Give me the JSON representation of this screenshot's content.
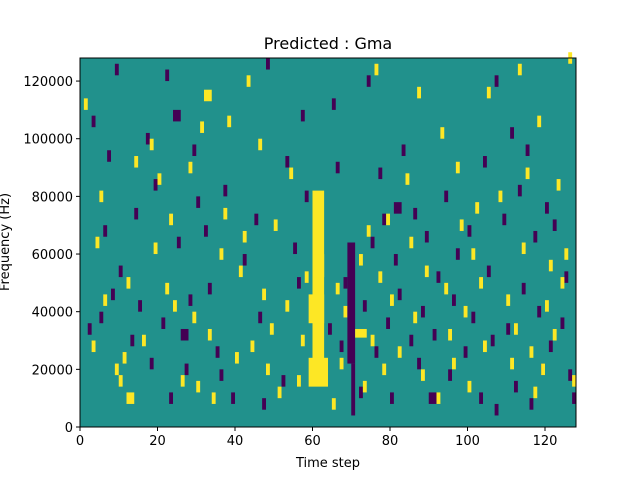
{
  "chart_data": {
    "type": "heatmap",
    "title": "Predicted : Gma",
    "xlabel": "Time step",
    "ylabel": "Frequency (Hz)",
    "xlim": [
      0,
      128
    ],
    "ylim": [
      0,
      128000
    ],
    "x_ticks": [
      0,
      20,
      40,
      60,
      80,
      100,
      120
    ],
    "y_ticks": [
      0,
      20000,
      40000,
      60000,
      80000,
      100000,
      120000
    ],
    "x_tick_labels": [
      "0",
      "20",
      "40",
      "60",
      "80",
      "100",
      "120"
    ],
    "y_tick_labels": [
      "0",
      "20000",
      "40000",
      "60000",
      "80000",
      "100000",
      "120000"
    ],
    "n_time_steps": 128,
    "n_frequency_bins": 128,
    "colormap": "viridis",
    "values": {
      "low": -1,
      "mid": 0,
      "high": 1
    },
    "colors": {
      "low": "#440154",
      "mid": "#21918c",
      "high": "#fde725"
    },
    "background_value": 0,
    "high_cells": [
      {
        "t": [
          60,
          63
        ],
        "f": [
          18000,
          82000
        ]
      },
      {
        "t": [
          59,
          64
        ],
        "f": [
          14000,
          24000
        ]
      },
      {
        "t": [
          59,
          63
        ],
        "f": [
          36000,
          46000
        ]
      },
      {
        "t": [
          60,
          63
        ],
        "f": [
          52000,
          60000
        ]
      },
      {
        "t": [
          71,
          74
        ],
        "f": [
          31000,
          34000
        ]
      },
      {
        "t": [
          12,
          14
        ],
        "f": [
          8000,
          12000
        ]
      },
      {
        "t": [
          32,
          34
        ],
        "f": [
          113000,
          117000
        ]
      },
      {
        "t": [
          118,
          119
        ],
        "f": [
          104000,
          108000
        ]
      },
      {
        "t": [
          97,
          98
        ],
        "f": [
          88000,
          92000
        ]
      },
      {
        "t": [
          120,
          121
        ],
        "f": [
          40000,
          44000
        ]
      }
    ],
    "low_cells": [
      {
        "t": [
          69,
          71
        ],
        "f": [
          22000,
          64000
        ]
      },
      {
        "t": [
          70,
          71
        ],
        "f": [
          4000,
          22000
        ]
      },
      {
        "t": [
          24,
          26
        ],
        "f": [
          106000,
          110000
        ]
      },
      {
        "t": [
          26,
          28
        ],
        "f": [
          30000,
          34000
        ]
      },
      {
        "t": [
          81,
          83
        ],
        "f": [
          74000,
          78000
        ]
      },
      {
        "t": [
          90,
          92
        ],
        "f": [
          8000,
          12000
        ]
      },
      {
        "t": [
          107,
          108
        ],
        "f": [
          4000,
          8000
        ]
      }
    ],
    "scatter_high": [
      [
        1,
        110000
      ],
      [
        3,
        26000
      ],
      [
        4,
        62000
      ],
      [
        5,
        78000
      ],
      [
        6,
        42000
      ],
      [
        9,
        18000
      ],
      [
        10,
        14000
      ],
      [
        11,
        22000
      ],
      [
        12,
        48000
      ],
      [
        14,
        90000
      ],
      [
        16,
        28000
      ],
      [
        18,
        96000
      ],
      [
        19,
        60000
      ],
      [
        20,
        84000
      ],
      [
        22,
        46000
      ],
      [
        23,
        70000
      ],
      [
        24,
        40000
      ],
      [
        26,
        14000
      ],
      [
        28,
        88000
      ],
      [
        29,
        36000
      ],
      [
        30,
        12000
      ],
      [
        31,
        102000
      ],
      [
        33,
        30000
      ],
      [
        34,
        8000
      ],
      [
        36,
        58000
      ],
      [
        37,
        72000
      ],
      [
        38,
        104000
      ],
      [
        40,
        22000
      ],
      [
        41,
        52000
      ],
      [
        42,
        64000
      ],
      [
        43,
        118000
      ],
      [
        44,
        26000
      ],
      [
        46,
        96000
      ],
      [
        47,
        44000
      ],
      [
        48,
        18000
      ],
      [
        49,
        32000
      ],
      [
        50,
        68000
      ],
      [
        51,
        10000
      ],
      [
        53,
        40000
      ],
      [
        54,
        86000
      ],
      [
        56,
        14000
      ],
      [
        57,
        28000
      ],
      [
        58,
        50000
      ],
      [
        65,
        6000
      ],
      [
        66,
        46000
      ],
      [
        67,
        20000
      ],
      [
        68,
        38000
      ],
      [
        72,
        56000
      ],
      [
        73,
        12000
      ],
      [
        74,
        66000
      ],
      [
        75,
        28000
      ],
      [
        76,
        122000
      ],
      [
        77,
        50000
      ],
      [
        78,
        18000
      ],
      [
        79,
        70000
      ],
      [
        80,
        42000
      ],
      [
        82,
        24000
      ],
      [
        84,
        84000
      ],
      [
        85,
        62000
      ],
      [
        86,
        36000
      ],
      [
        87,
        114000
      ],
      [
        88,
        16000
      ],
      [
        89,
        52000
      ],
      [
        92,
        8000
      ],
      [
        93,
        100000
      ],
      [
        94,
        46000
      ],
      [
        95,
        30000
      ],
      [
        96,
        20000
      ],
      [
        98,
        68000
      ],
      [
        99,
        38000
      ],
      [
        100,
        12000
      ],
      [
        101,
        58000
      ],
      [
        102,
        74000
      ],
      [
        103,
        48000
      ],
      [
        104,
        26000
      ],
      [
        105,
        114000
      ],
      [
        108,
        78000
      ],
      [
        110,
        42000
      ],
      [
        111,
        20000
      ],
      [
        112,
        32000
      ],
      [
        113,
        122000
      ],
      [
        114,
        60000
      ],
      [
        115,
        86000
      ],
      [
        116,
        24000
      ],
      [
        117,
        10000
      ],
      [
        119,
        18000
      ],
      [
        121,
        54000
      ],
      [
        122,
        30000
      ],
      [
        123,
        82000
      ],
      [
        124,
        48000
      ],
      [
        125,
        58000
      ],
      [
        126,
        126000
      ],
      [
        127,
        14000
      ]
    ],
    "scatter_low": [
      [
        2,
        32000
      ],
      [
        3,
        104000
      ],
      [
        5,
        36000
      ],
      [
        6,
        66000
      ],
      [
        7,
        92000
      ],
      [
        8,
        44000
      ],
      [
        9,
        122000
      ],
      [
        10,
        52000
      ],
      [
        13,
        28000
      ],
      [
        14,
        72000
      ],
      [
        15,
        40000
      ],
      [
        17,
        98000
      ],
      [
        18,
        20000
      ],
      [
        19,
        82000
      ],
      [
        21,
        34000
      ],
      [
        22,
        120000
      ],
      [
        23,
        8000
      ],
      [
        25,
        62000
      ],
      [
        27,
        18000
      ],
      [
        28,
        42000
      ],
      [
        29,
        94000
      ],
      [
        30,
        76000
      ],
      [
        32,
        66000
      ],
      [
        33,
        46000
      ],
      [
        35,
        24000
      ],
      [
        36,
        16000
      ],
      [
        37,
        80000
      ],
      [
        39,
        8000
      ],
      [
        42,
        56000
      ],
      [
        45,
        70000
      ],
      [
        46,
        36000
      ],
      [
        47,
        6000
      ],
      [
        48,
        124000
      ],
      [
        52,
        14000
      ],
      [
        53,
        90000
      ],
      [
        55,
        60000
      ],
      [
        56,
        48000
      ],
      [
        57,
        106000
      ],
      [
        58,
        78000
      ],
      [
        64,
        32000
      ],
      [
        65,
        110000
      ],
      [
        66,
        88000
      ],
      [
        67,
        26000
      ],
      [
        68,
        48000
      ],
      [
        72,
        10000
      ],
      [
        73,
        40000
      ],
      [
        74,
        118000
      ],
      [
        75,
        62000
      ],
      [
        76,
        24000
      ],
      [
        77,
        86000
      ],
      [
        78,
        70000
      ],
      [
        79,
        34000
      ],
      [
        80,
        8000
      ],
      [
        81,
        56000
      ],
      [
        82,
        44000
      ],
      [
        83,
        94000
      ],
      [
        85,
        28000
      ],
      [
        86,
        72000
      ],
      [
        87,
        20000
      ],
      [
        88,
        38000
      ],
      [
        89,
        64000
      ],
      [
        91,
        30000
      ],
      [
        92,
        50000
      ],
      [
        94,
        78000
      ],
      [
        95,
        16000
      ],
      [
        96,
        42000
      ],
      [
        97,
        58000
      ],
      [
        99,
        24000
      ],
      [
        100,
        66000
      ],
      [
        101,
        36000
      ],
      [
        103,
        8000
      ],
      [
        104,
        90000
      ],
      [
        105,
        52000
      ],
      [
        106,
        28000
      ],
      [
        107,
        118000
      ],
      [
        109,
        70000
      ],
      [
        110,
        32000
      ],
      [
        111,
        100000
      ],
      [
        112,
        12000
      ],
      [
        113,
        80000
      ],
      [
        114,
        46000
      ],
      [
        115,
        94000
      ],
      [
        116,
        6000
      ],
      [
        117,
        64000
      ],
      [
        118,
        38000
      ],
      [
        119,
        18000
      ],
      [
        120,
        74000
      ],
      [
        121,
        26000
      ],
      [
        122,
        68000
      ],
      [
        124,
        34000
      ],
      [
        125,
        50000
      ],
      [
        126,
        16000
      ],
      [
        127,
        8000
      ]
    ]
  }
}
